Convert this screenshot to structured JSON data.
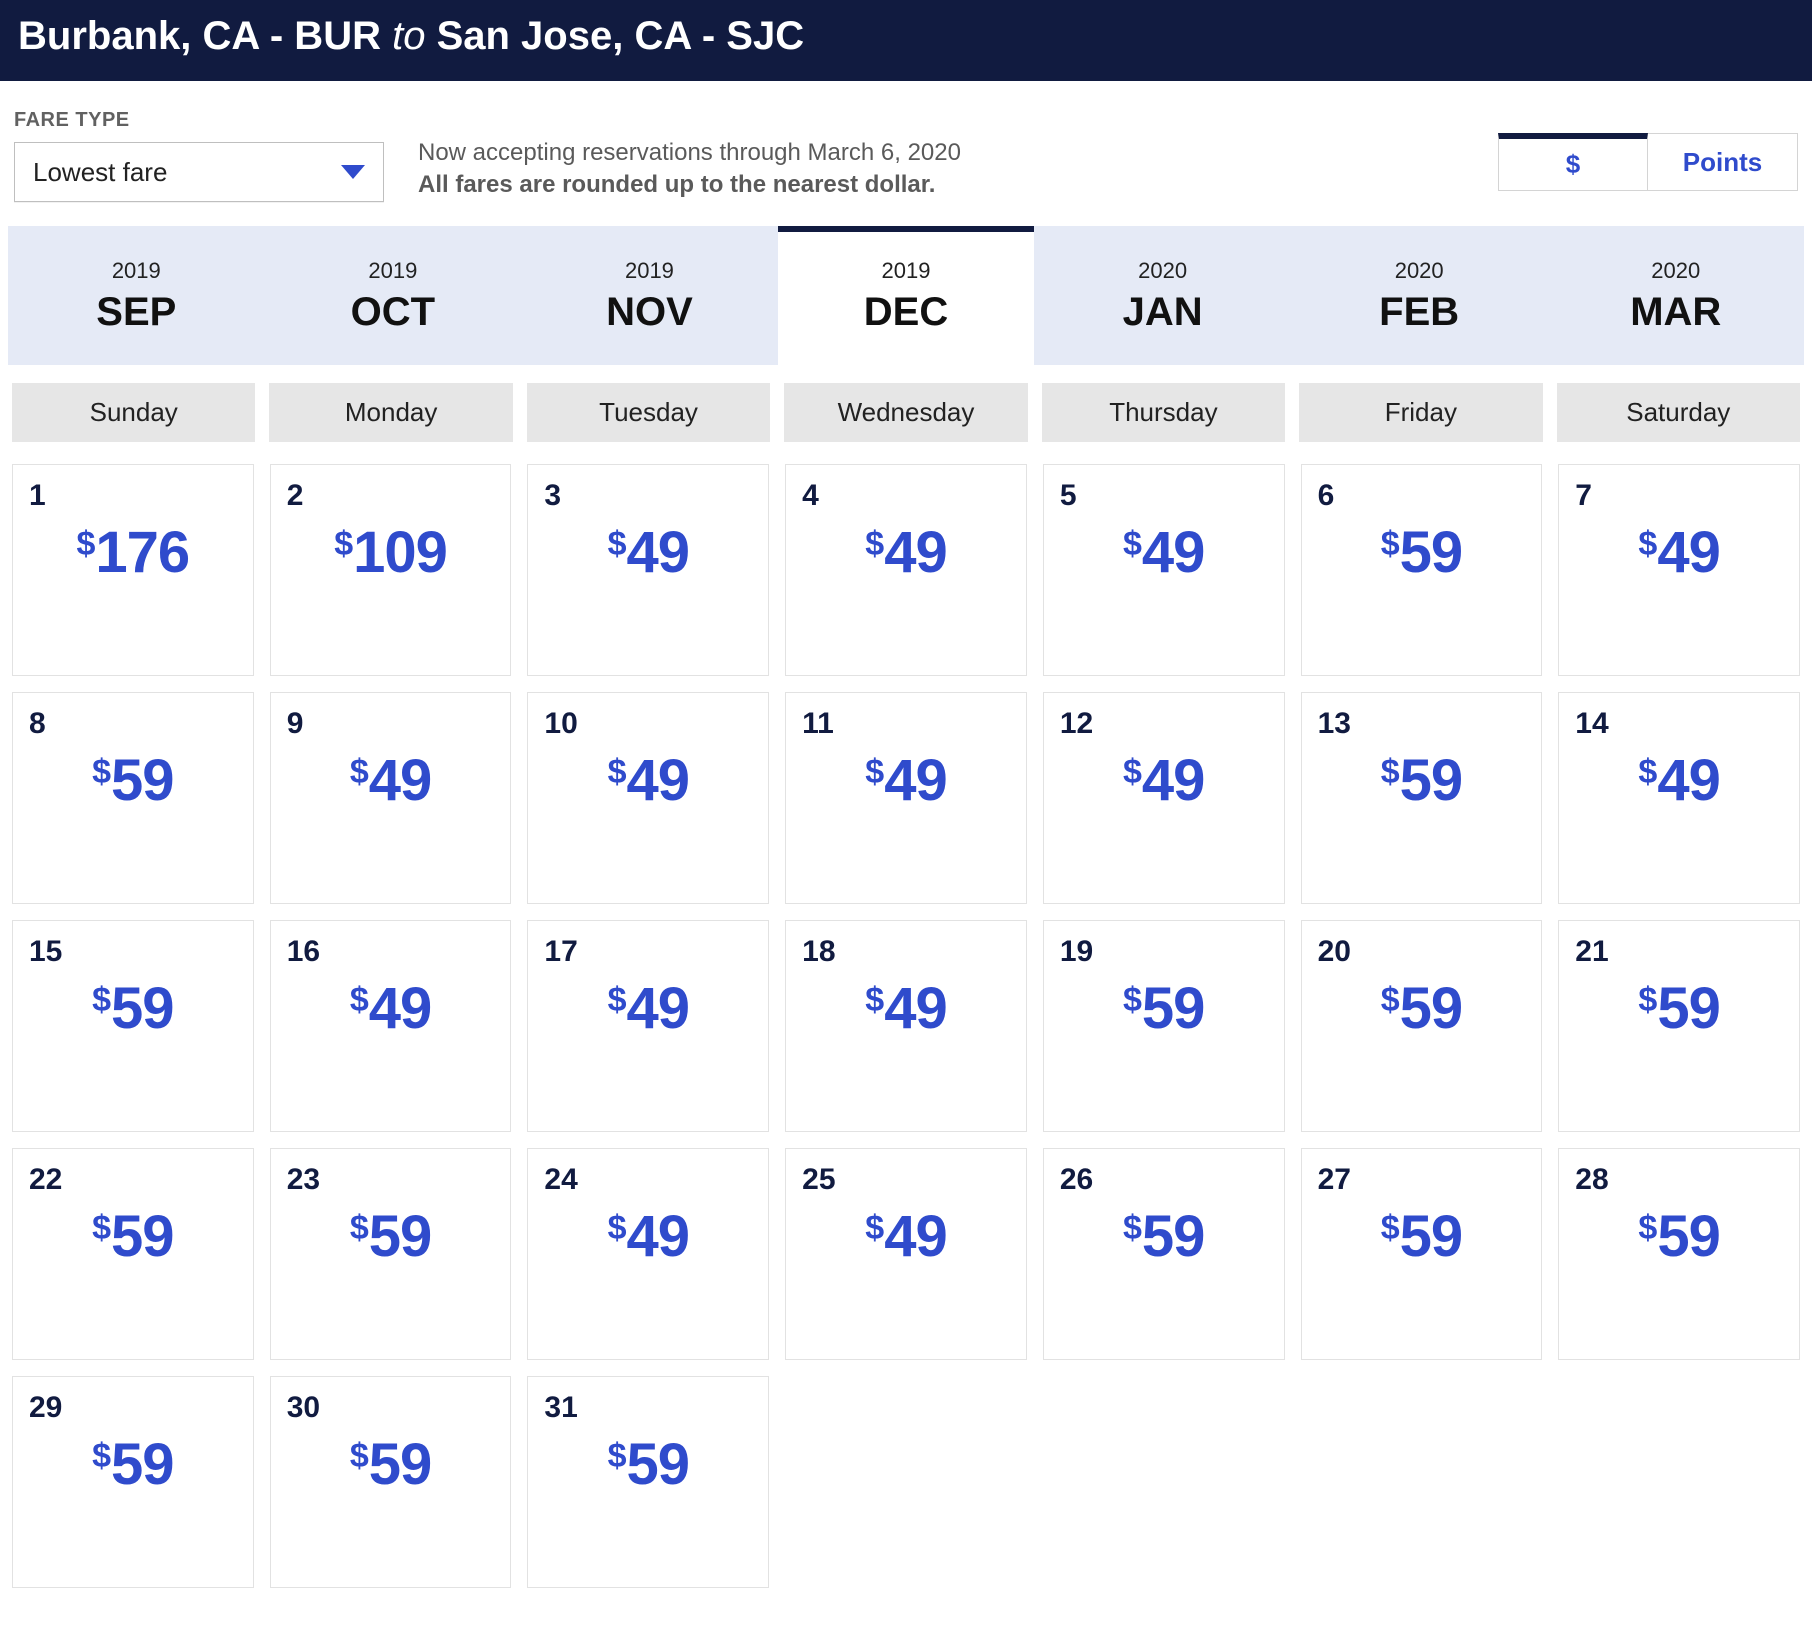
{
  "header": {
    "from": "Burbank, CA - BUR",
    "to_word": "to",
    "to": "San Jose, CA - SJC"
  },
  "fare_type": {
    "label": "FARE TYPE",
    "selected": "Lowest fare"
  },
  "notice": {
    "line1": "Now accepting reservations through March 6, 2020",
    "line2": "All fares are rounded up to the nearest dollar."
  },
  "toggle": {
    "dollars": "$",
    "points": "Points",
    "active": "dollars"
  },
  "months": [
    {
      "year": "2019",
      "abbr": "SEP",
      "active": false
    },
    {
      "year": "2019",
      "abbr": "OCT",
      "active": false
    },
    {
      "year": "2019",
      "abbr": "NOV",
      "active": false
    },
    {
      "year": "2019",
      "abbr": "DEC",
      "active": true
    },
    {
      "year": "2020",
      "abbr": "JAN",
      "active": false
    },
    {
      "year": "2020",
      "abbr": "FEB",
      "active": false
    },
    {
      "year": "2020",
      "abbr": "MAR",
      "active": false
    }
  ],
  "days_of_week": [
    "Sunday",
    "Monday",
    "Tuesday",
    "Wednesday",
    "Thursday",
    "Friday",
    "Saturday"
  ],
  "currency_symbol": "$",
  "calendar": [
    {
      "day": "1",
      "price": "176"
    },
    {
      "day": "2",
      "price": "109"
    },
    {
      "day": "3",
      "price": "49"
    },
    {
      "day": "4",
      "price": "49"
    },
    {
      "day": "5",
      "price": "49"
    },
    {
      "day": "6",
      "price": "59"
    },
    {
      "day": "7",
      "price": "49"
    },
    {
      "day": "8",
      "price": "59"
    },
    {
      "day": "9",
      "price": "49"
    },
    {
      "day": "10",
      "price": "49"
    },
    {
      "day": "11",
      "price": "49"
    },
    {
      "day": "12",
      "price": "49"
    },
    {
      "day": "13",
      "price": "59"
    },
    {
      "day": "14",
      "price": "49"
    },
    {
      "day": "15",
      "price": "59"
    },
    {
      "day": "16",
      "price": "49"
    },
    {
      "day": "17",
      "price": "49"
    },
    {
      "day": "18",
      "price": "49"
    },
    {
      "day": "19",
      "price": "59"
    },
    {
      "day": "20",
      "price": "59"
    },
    {
      "day": "21",
      "price": "59"
    },
    {
      "day": "22",
      "price": "59"
    },
    {
      "day": "23",
      "price": "59"
    },
    {
      "day": "24",
      "price": "49"
    },
    {
      "day": "25",
      "price": "49"
    },
    {
      "day": "26",
      "price": "59"
    },
    {
      "day": "27",
      "price": "59"
    },
    {
      "day": "28",
      "price": "59"
    },
    {
      "day": "29",
      "price": "59"
    },
    {
      "day": "30",
      "price": "59"
    },
    {
      "day": "31",
      "price": "59"
    }
  ],
  "colors": {
    "header_bg": "#111b40",
    "accent_blue": "#2f4bcc",
    "month_bg": "#e5eaf6",
    "dow_bg": "#e6e6e6",
    "border": "#e2e2e2"
  }
}
